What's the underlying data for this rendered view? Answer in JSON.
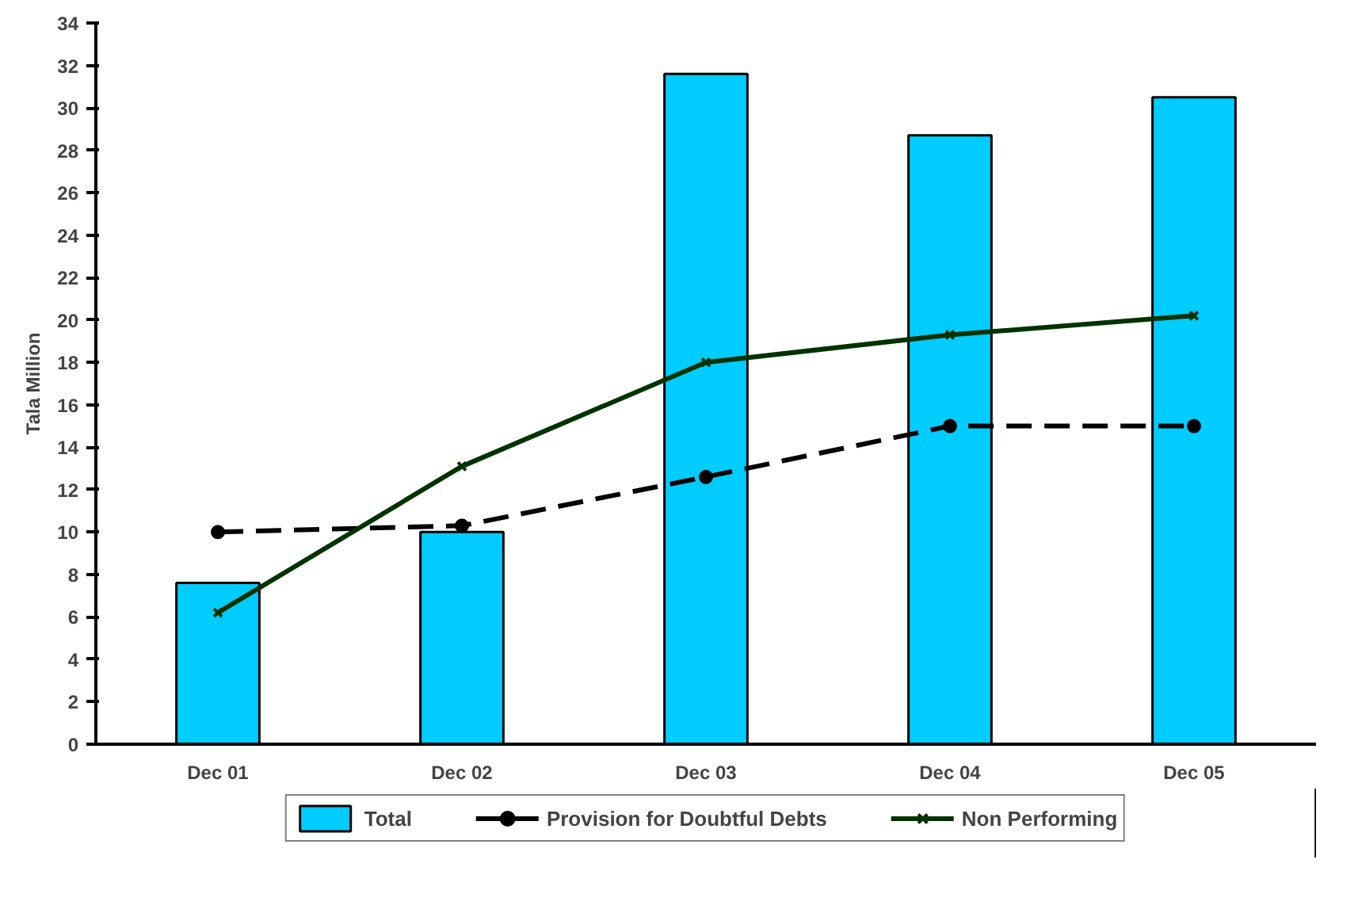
{
  "chart_data": {
    "type": "bar",
    "ylabel": "Tala Million",
    "categories": [
      "Dec 01",
      "Dec 02",
      "Dec 03",
      "Dec 04",
      "Dec 05"
    ],
    "series": [
      {
        "name": "Total",
        "color": "#00ccff",
        "values": [
          7.6,
          10.0,
          31.6,
          28.7,
          30.5
        ]
      },
      {
        "name": "Provision for Doubtful Debts",
        "type": "line",
        "color": "#000000",
        "line_style": "dashed",
        "marker": "circle",
        "values": [
          10.0,
          10.3,
          12.6,
          15.0,
          15.0
        ]
      },
      {
        "name": "Non Performing",
        "type": "line",
        "color": "#003300",
        "line_style": "solid",
        "marker": "cross",
        "values": [
          6.2,
          13.1,
          18.0,
          19.3,
          20.2
        ]
      }
    ],
    "ylim": [
      0,
      34
    ],
    "yticks": [
      0,
      2,
      4,
      6,
      8,
      10,
      12,
      14,
      16,
      18,
      20,
      22,
      24,
      26,
      28,
      30,
      32,
      34
    ],
    "grid": false,
    "legend": "bottom"
  }
}
